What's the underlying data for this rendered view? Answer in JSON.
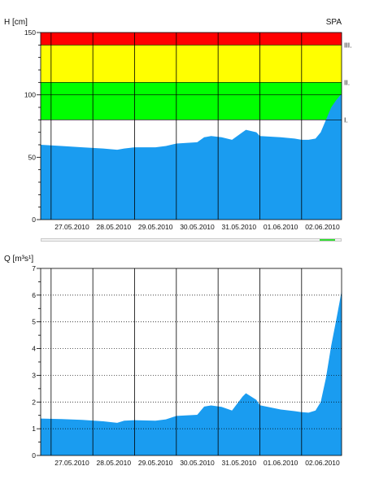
{
  "colors": {
    "area": "#1a9cf0",
    "band_red": "#ff0000",
    "band_yellow": "#ffff00",
    "band_green": "#00ff00",
    "grid": "#000000",
    "status_bar": "#33dd33"
  },
  "chart_data": [
    {
      "type": "area",
      "title": "",
      "station": "SPA",
      "ylabel": "H [cm]",
      "xlabel": "",
      "ylim": [
        0,
        150
      ],
      "yticks": [
        0,
        50,
        100,
        150
      ],
      "y_minor_step": 10,
      "xlim": [
        "2010-05-26T18:00",
        "2010-06-02T23:00"
      ],
      "x_tick_labels": [
        "27.05.2010",
        "28.05.2010",
        "29.05.2010",
        "30.05.2010",
        "31.05.2010",
        "01.06.2010",
        "02.06.2010"
      ],
      "grid": "vertical lines at midnight",
      "threshold_bands": [
        {
          "label": "I.",
          "from": 80,
          "to": 100,
          "color": "green"
        },
        {
          "label": "II.",
          "from": 100,
          "to": 110,
          "color": "green"
        },
        {
          "label": "III.",
          "from": 110,
          "to": 140,
          "color": "yellow"
        },
        {
          "label": "",
          "from": 140,
          "to": 150,
          "color": "red"
        }
      ],
      "threshold_labels": [
        {
          "label": "III.",
          "value": 140
        },
        {
          "label": "II.",
          "value": 110
        },
        {
          "label": "I.",
          "value": 80
        }
      ],
      "series": [
        {
          "points": [
            [
              "2010-05-26T18:00",
              60
            ],
            [
              "2010-05-27T06:00",
              59
            ],
            [
              "2010-05-27T18:00",
              58
            ],
            [
              "2010-05-28T06:00",
              57
            ],
            [
              "2010-05-28T14:00",
              56
            ],
            [
              "2010-05-28T18:00",
              57
            ],
            [
              "2010-05-29T00:00",
              58
            ],
            [
              "2010-05-29T12:00",
              58
            ],
            [
              "2010-05-29T18:00",
              59
            ],
            [
              "2010-05-30T00:00",
              61
            ],
            [
              "2010-05-30T12:00",
              62
            ],
            [
              "2010-05-30T16:00",
              66
            ],
            [
              "2010-05-30T20:00",
              67
            ],
            [
              "2010-05-31T02:00",
              66
            ],
            [
              "2010-05-31T08:00",
              64
            ],
            [
              "2010-05-31T14:00",
              70
            ],
            [
              "2010-05-31T16:00",
              72
            ],
            [
              "2010-05-31T22:00",
              70
            ],
            [
              "2010-06-01T00:00",
              67
            ],
            [
              "2010-06-01T12:00",
              66
            ],
            [
              "2010-06-01T20:00",
              65
            ],
            [
              "2010-06-02T00:00",
              64
            ],
            [
              "2010-06-02T04:00",
              64
            ],
            [
              "2010-06-02T08:00",
              65
            ],
            [
              "2010-06-02T11:00",
              70
            ],
            [
              "2010-06-02T14:00",
              80
            ],
            [
              "2010-06-02T17:00",
              90
            ],
            [
              "2010-06-02T20:00",
              96
            ],
            [
              "2010-06-02T23:00",
              101
            ]
          ]
        }
      ]
    },
    {
      "type": "area",
      "title": "",
      "ylabel": "Q [m³s¹]",
      "xlabel": "",
      "ylim": [
        0,
        7
      ],
      "yticks": [
        0,
        1,
        2,
        3,
        4,
        5,
        6,
        7
      ],
      "y_minor_step": 0.5,
      "xlim": [
        "2010-05-26T18:00",
        "2010-06-02T23:00"
      ],
      "x_tick_labels": [
        "27.05.2010",
        "28.05.2010",
        "29.05.2010",
        "30.05.2010",
        "31.05.2010",
        "01.06.2010",
        "02.06.2010"
      ],
      "grid": "vertical lines at midnight, dotted horizontal lines",
      "series": [
        {
          "points": [
            [
              "2010-05-26T18:00",
              1.38
            ],
            [
              "2010-05-27T06:00",
              1.36
            ],
            [
              "2010-05-27T18:00",
              1.33
            ],
            [
              "2010-05-28T06:00",
              1.28
            ],
            [
              "2010-05-28T14:00",
              1.22
            ],
            [
              "2010-05-28T18:00",
              1.3
            ],
            [
              "2010-05-29T00:00",
              1.32
            ],
            [
              "2010-05-29T12:00",
              1.3
            ],
            [
              "2010-05-29T18:00",
              1.35
            ],
            [
              "2010-05-30T00:00",
              1.48
            ],
            [
              "2010-05-30T12:00",
              1.52
            ],
            [
              "2010-05-30T16:00",
              1.83
            ],
            [
              "2010-05-30T20:00",
              1.87
            ],
            [
              "2010-05-31T02:00",
              1.82
            ],
            [
              "2010-05-31T08:00",
              1.68
            ],
            [
              "2010-05-31T14:00",
              2.2
            ],
            [
              "2010-05-31T16:00",
              2.33
            ],
            [
              "2010-05-31T22:00",
              2.08
            ],
            [
              "2010-06-01T00:00",
              1.88
            ],
            [
              "2010-06-01T12:00",
              1.72
            ],
            [
              "2010-06-01T20:00",
              1.66
            ],
            [
              "2010-06-02T00:00",
              1.62
            ],
            [
              "2010-06-02T04:00",
              1.6
            ],
            [
              "2010-06-02T08:00",
              1.68
            ],
            [
              "2010-06-02T11:00",
              2.0
            ],
            [
              "2010-06-02T14:00",
              2.9
            ],
            [
              "2010-06-02T17:00",
              4.1
            ],
            [
              "2010-06-02T20:00",
              5.1
            ],
            [
              "2010-06-02T23:00",
              6.15
            ]
          ]
        }
      ]
    }
  ],
  "status_bar": {
    "fill_from": 0.93,
    "fill_to": 0.98
  }
}
